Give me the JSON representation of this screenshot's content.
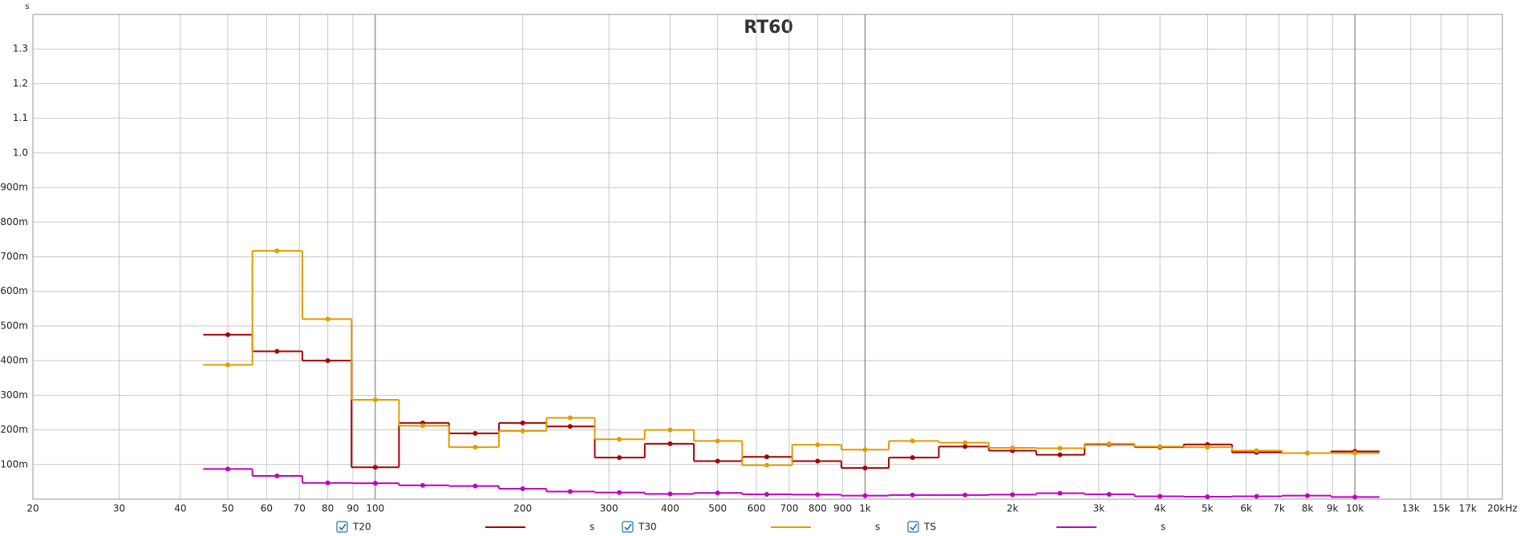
{
  "chart_data": {
    "type": "step",
    "title": "RT60",
    "y_unit": "s",
    "x_scale": "log",
    "grid": true,
    "xlim": [
      20,
      20000
    ],
    "ylim": [
      0,
      1.4
    ],
    "xticks": [
      20,
      30,
      40,
      50,
      60,
      70,
      80,
      90,
      100,
      200,
      300,
      400,
      500,
      600,
      700,
      800,
      900,
      {
        "value": 1000,
        "label": "1k"
      },
      {
        "value": 2000,
        "label": "2k"
      },
      {
        "value": 3000,
        "label": "3k"
      },
      {
        "value": 4000,
        "label": "4k"
      },
      {
        "value": 5000,
        "label": "5k"
      },
      {
        "value": 6000,
        "label": "6k"
      },
      {
        "value": 7000,
        "label": "7k"
      },
      {
        "value": 8000,
        "label": "8k"
      },
      {
        "value": 9000,
        "label": "9k"
      },
      {
        "value": 10000,
        "label": "10k"
      },
      {
        "value": 13000,
        "label": "13k"
      },
      {
        "value": 15000,
        "label": "15k"
      },
      {
        "value": 17000,
        "label": "17k"
      },
      {
        "value": 20000,
        "label": "20kHz"
      }
    ],
    "yticks": [
      {
        "value": 0.1,
        "label": "100m"
      },
      {
        "value": 0.2,
        "label": "200m"
      },
      {
        "value": 0.3,
        "label": "300m"
      },
      {
        "value": 0.4,
        "label": "400m"
      },
      {
        "value": 0.5,
        "label": "500m"
      },
      {
        "value": 0.6,
        "label": "600m"
      },
      {
        "value": 0.7,
        "label": "700m"
      },
      {
        "value": 0.8,
        "label": "800m"
      },
      {
        "value": 0.9,
        "label": "900m"
      },
      {
        "value": 1,
        "label": "1.0"
      },
      1.1,
      1.2,
      1.3
    ],
    "x": [
      50,
      63,
      80,
      100,
      125,
      160,
      200,
      250,
      315,
      400,
      500,
      630,
      800,
      1000,
      1250,
      1600,
      2000,
      2500,
      3150,
      4000,
      5000,
      6300,
      8000,
      10000
    ],
    "series": [
      {
        "name": "T20",
        "color": "#a80000",
        "values": [
          0.475,
          0.427,
          0.4,
          0.092,
          0.22,
          0.19,
          0.22,
          0.21,
          0.12,
          0.16,
          0.11,
          0.122,
          0.11,
          0.09,
          0.12,
          0.152,
          0.14,
          0.128,
          0.158,
          0.15,
          0.158,
          0.135,
          0.133,
          0.138
        ]
      },
      {
        "name": "T30",
        "color": "#e39b00",
        "values": [
          0.388,
          0.717,
          0.52,
          0.287,
          0.212,
          0.15,
          0.197,
          0.235,
          0.173,
          0.2,
          0.168,
          0.098,
          0.157,
          0.143,
          0.168,
          0.163,
          0.148,
          0.147,
          0.16,
          0.152,
          0.15,
          0.14,
          0.133,
          0.133
        ]
      },
      {
        "name": "TS",
        "color": "#c000c0",
        "values": [
          0.087,
          0.067,
          0.047,
          0.046,
          0.04,
          0.038,
          0.03,
          0.022,
          0.019,
          0.015,
          0.018,
          0.014,
          0.013,
          0.01,
          0.012,
          0.012,
          0.013,
          0.017,
          0.014,
          0.008,
          0.007,
          0.008,
          0.01,
          0.006
        ]
      }
    ]
  }
}
